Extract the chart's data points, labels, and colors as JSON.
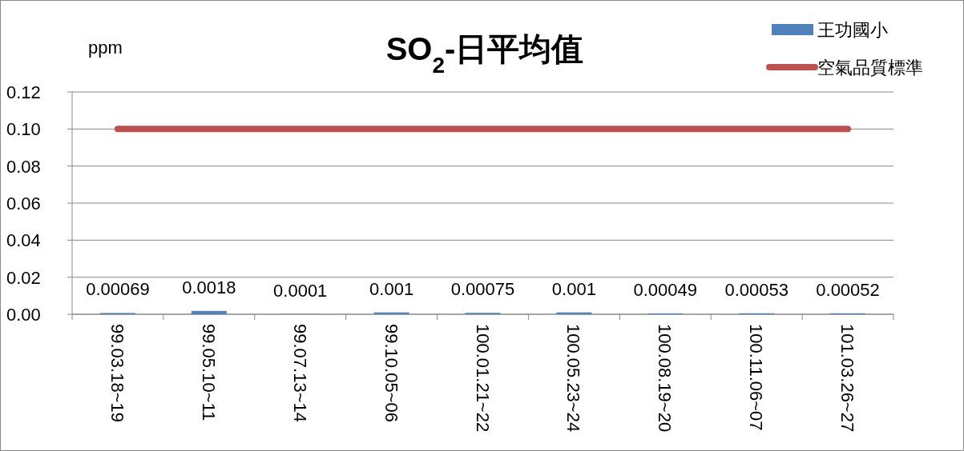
{
  "chart_data": {
    "type": "bar",
    "title": "SO$_{2}$-日平均值",
    "ylabel": "ppm",
    "categories": [
      "99.03.18~19",
      "99.05.10~11",
      "99.07.13~14",
      "99.10.05~06",
      "100.01.21~22",
      "100.05.23~24",
      "100.08.19~20",
      "100.11.06~07",
      "101.03.26~27"
    ],
    "series": [
      {
        "name": "王功國小",
        "color": "#4f81bd",
        "values": [
          0.00069,
          0.0018,
          0.0001,
          0.001,
          0.00075,
          0.001,
          0.00049,
          0.00053,
          0.00052
        ],
        "value_labels": [
          "0.00069",
          "0.0018",
          "0.0001",
          "0.001",
          "0.00075",
          "0.001",
          "0.00049",
          "0.00053",
          "0.00052"
        ]
      },
      {
        "name": "空氣品質標準",
        "type": "line",
        "color": "#c0504d",
        "values": [
          0.1,
          0.1,
          0.1,
          0.1,
          0.1,
          0.1,
          0.1,
          0.1,
          0.1
        ]
      }
    ],
    "ylim": [
      0,
      0.12
    ],
    "yticks": [
      {
        "value": 0,
        "label": "0.00"
      },
      {
        "value": 0.02,
        "label": "0.02"
      },
      {
        "value": 0.04,
        "label": "0.04"
      },
      {
        "value": 0.06,
        "label": "0.06"
      },
      {
        "value": 0.08,
        "label": "0.08"
      },
      {
        "value": 0.1,
        "label": "0.10"
      },
      {
        "value": 0.12,
        "label": "0.12"
      }
    ],
    "grid": "y",
    "legend": "top right"
  }
}
